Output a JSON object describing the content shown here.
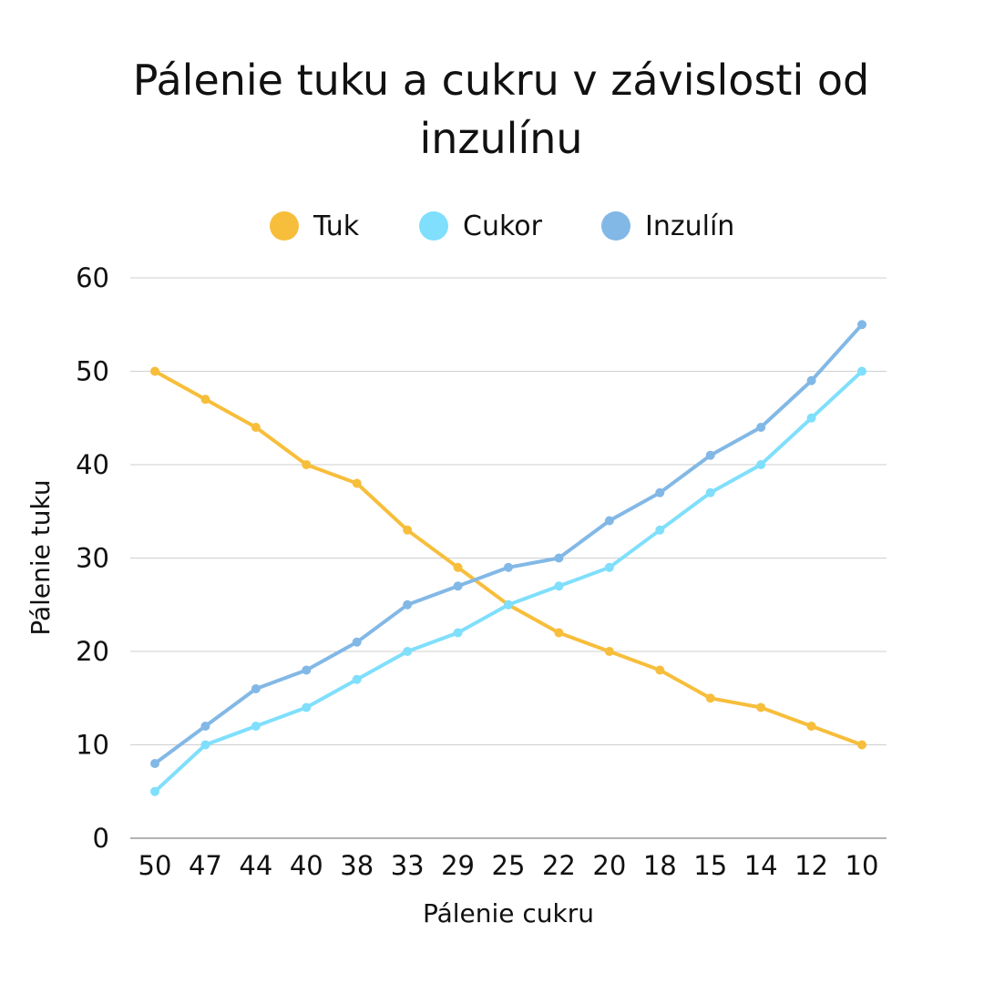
{
  "chart_data": {
    "type": "line",
    "title": "Pálenie tuku a cukru v závislosti od inzulínu",
    "xlabel": "Pálenie cukru",
    "ylabel": "Pálenie tuku",
    "categories": [
      "50",
      "47",
      "44",
      "40",
      "38",
      "33",
      "29",
      "25",
      "22",
      "20",
      "18",
      "15",
      "14",
      "12",
      "10"
    ],
    "ylim": [
      0,
      60
    ],
    "yticks": [
      "0",
      "10",
      "20",
      "30",
      "40",
      "50",
      "60"
    ],
    "grid": true,
    "legend_position": "top",
    "series": [
      {
        "name": "Tuk",
        "color": "#F7BE3B",
        "values": [
          50,
          47,
          44,
          40,
          38,
          33,
          29,
          25,
          22,
          20,
          18,
          15,
          14,
          12,
          10
        ]
      },
      {
        "name": "Cukor",
        "color": "#7FDFFC",
        "values": [
          5,
          10,
          12,
          14,
          17,
          20,
          22,
          25,
          27,
          29,
          33,
          37,
          40,
          45,
          50
        ]
      },
      {
        "name": "Inzulín",
        "color": "#82B8E6",
        "values": [
          8,
          12,
          16,
          18,
          21,
          25,
          27,
          29,
          30,
          34,
          37,
          41,
          44,
          49,
          55
        ]
      }
    ]
  }
}
